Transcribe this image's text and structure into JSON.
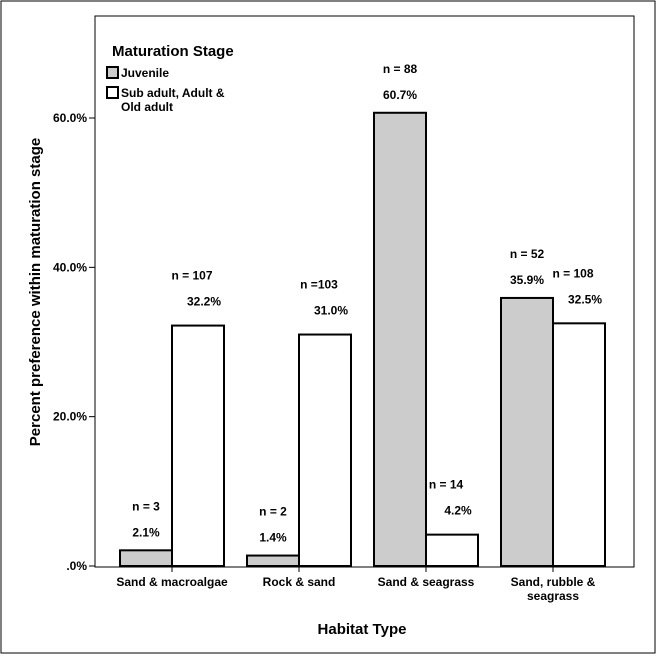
{
  "chart_data": {
    "type": "bar",
    "xlabel": "Habitat Type",
    "ylabel": "Percent preference within maturation stage",
    "ylim": [
      0,
      73
    ],
    "yticks": [
      0,
      20,
      40,
      60
    ],
    "ytick_labels": [
      ".0%",
      "20.0%",
      "40.0%",
      "60.0%"
    ],
    "categories": [
      [
        "Sand & macroalgae"
      ],
      [
        "Rock & sand"
      ],
      [
        "Sand & seagrass"
      ],
      [
        "Sand, rubble &",
        "seagrass"
      ]
    ],
    "legend": {
      "title": "Maturation Stage",
      "position": "top-left"
    },
    "series": [
      {
        "name": [
          "Juvenile"
        ],
        "color": "#cccccc",
        "values": [
          2.1,
          1.4,
          60.7,
          35.9
        ],
        "value_labels": [
          "2.1%",
          "1.4%",
          "60.7%",
          "35.9%"
        ],
        "n_labels": [
          "n = 3",
          "n = 2",
          "n = 88",
          "n = 52"
        ]
      },
      {
        "name": [
          "Sub adult, Adult &",
          "Old adult"
        ],
        "color": "#ffffff",
        "values": [
          32.2,
          31.0,
          4.2,
          32.5
        ],
        "value_labels": [
          "32.2%",
          "31.0%",
          "4.2%",
          "32.5%"
        ],
        "n_labels": [
          "n = 107",
          "n =103",
          "n = 14",
          "n = 108"
        ]
      }
    ]
  }
}
